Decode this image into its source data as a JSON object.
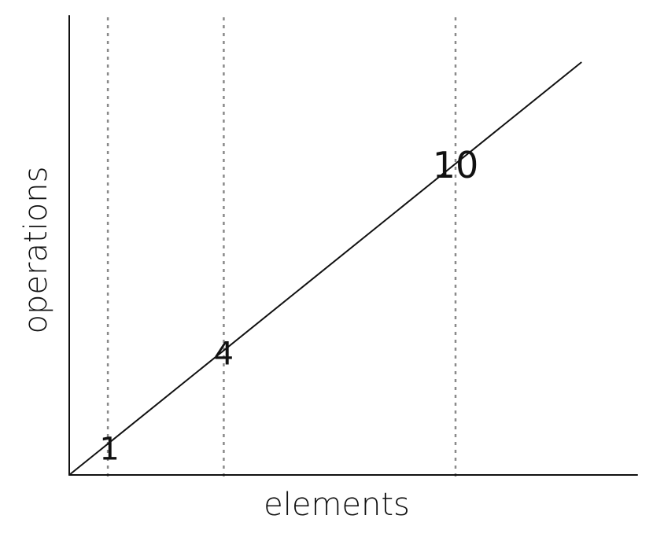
{
  "chart_data": {
    "type": "line",
    "xlabel": "elements",
    "ylabel": "operations",
    "xlim": [
      0,
      14.5
    ],
    "ylim": [
      0,
      14.5
    ],
    "grid": false,
    "series": [
      {
        "x": [
          0,
          13.25
        ],
        "y": [
          0,
          13.25
        ]
      }
    ],
    "annotations": [
      {
        "x": 1,
        "y": 1,
        "label": "1",
        "guide_line": true
      },
      {
        "x": 4,
        "y": 4,
        "label": "4",
        "guide_line": true
      },
      {
        "x": 10,
        "y": 10,
        "label": "10",
        "guide_line": true
      }
    ]
  }
}
